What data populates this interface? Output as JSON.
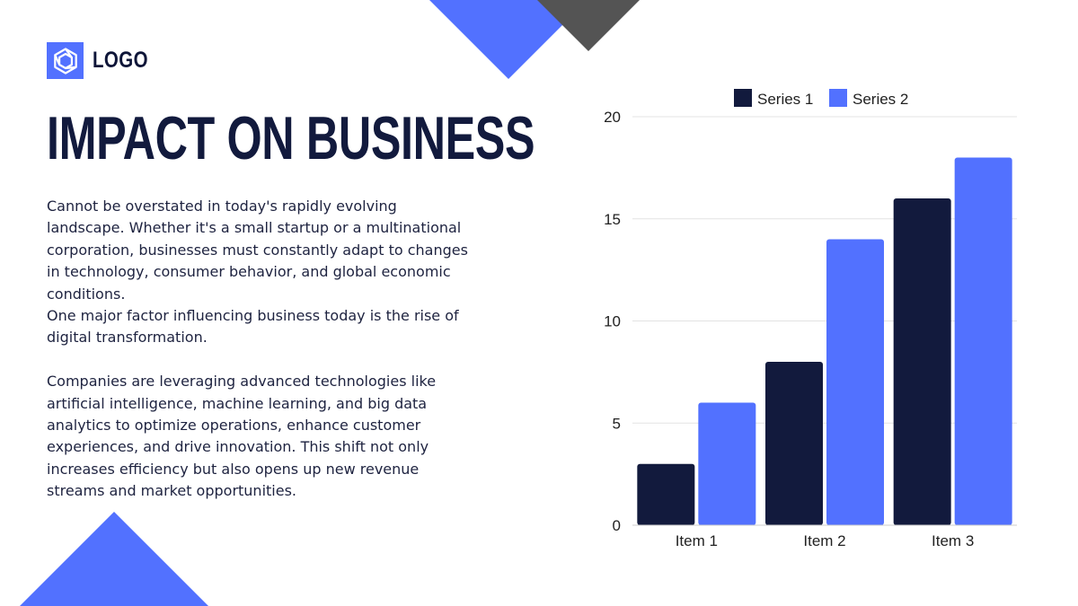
{
  "logo": {
    "label": "LOGO",
    "icon": "hexagon-logo-icon"
  },
  "title": "IMPACT ON BUSINESS",
  "paragraphs": [
    "Cannot be overstated in today's rapidly evolving landscape. Whether it's a small startup or a multinational corporation, businesses must constantly adapt to changes in technology, consumer behavior, and global economic conditions.",
    "One major factor influencing business today is the rise of digital transformation.",
    "Companies are leveraging advanced technologies like artificial intelligence, machine learning, and big data analytics to optimize operations, enhance customer experiences, and drive innovation. This shift not only increases efficiency but also opens up new revenue streams and market opportunities."
  ],
  "colors": {
    "accent": "#5271ff",
    "dark": "#121a3d",
    "gray": "#545454"
  },
  "chart_data": {
    "type": "bar",
    "title": "",
    "xlabel": "",
    "ylabel": "",
    "categories": [
      "Item 1",
      "Item 2",
      "Item 3"
    ],
    "series": [
      {
        "name": "Series 1",
        "color": "#121a3d",
        "values": [
          3,
          8,
          16
        ]
      },
      {
        "name": "Series 2",
        "color": "#5271ff",
        "values": [
          6,
          14,
          18
        ]
      }
    ],
    "ylim": [
      0,
      20
    ],
    "yticks": [
      0,
      5,
      10,
      15,
      20
    ],
    "grid": true,
    "legend": "top-center"
  }
}
